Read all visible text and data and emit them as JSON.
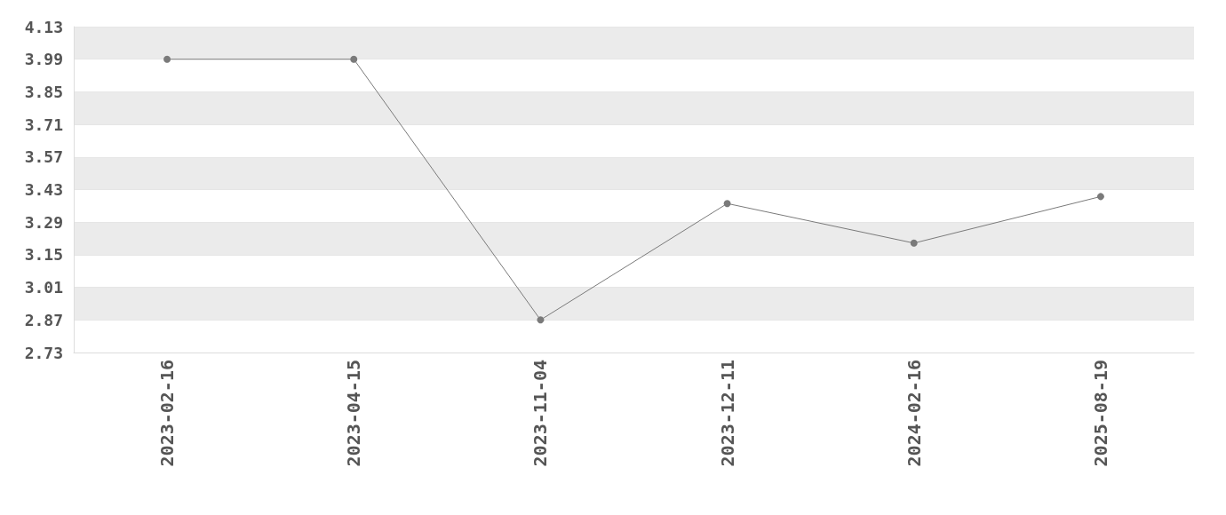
{
  "chart_data": {
    "type": "line",
    "categories": [
      "2023-02-16",
      "2023-04-15",
      "2023-11-04",
      "2023-12-11",
      "2024-02-16",
      "2025-08-19"
    ],
    "series": [
      {
        "color": "#7a7a7a",
        "values": [
          3.99,
          3.99,
          2.87,
          3.37,
          3.2,
          3.4
        ]
      }
    ],
    "ylim": [
      2.73,
      4.13
    ],
    "yticks": [
      2.73,
      2.87,
      3.01,
      3.15,
      3.29,
      3.43,
      3.57,
      3.71,
      3.85,
      3.99,
      4.13
    ],
    "grid": "y",
    "marker": "circle",
    "line_style": "solid"
  }
}
